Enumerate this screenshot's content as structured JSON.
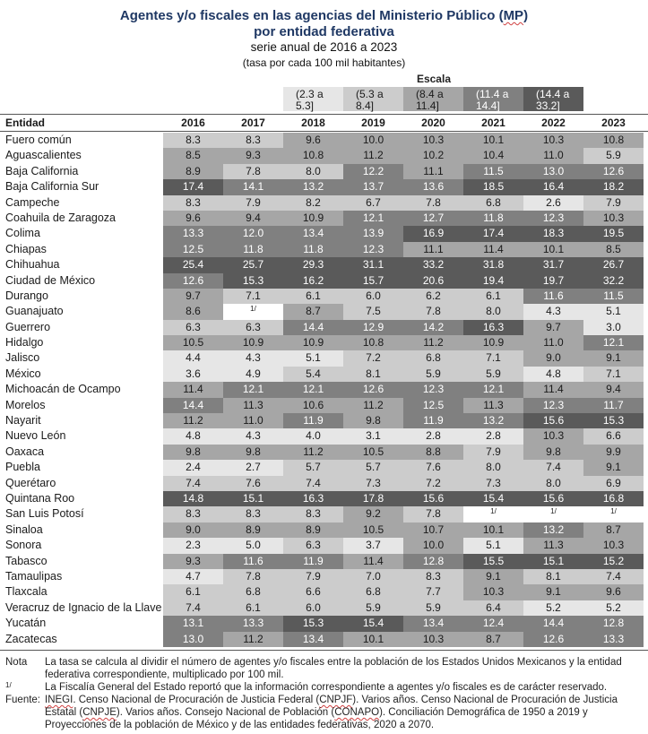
{
  "title_line1": "Agentes y/o fiscales en las agencias del Ministerio Público (MP)",
  "title_line2": "por entidad federativa",
  "subtitle": "serie anual de 2016 a 2023",
  "units": "(tasa por cada 100 mil habitantes)",
  "legend": {
    "title": "Escala",
    "ranges": [
      {
        "line1": "(2.3 a",
        "line2": "5.3]",
        "color": "#e6e6e6"
      },
      {
        "line1": "(5.3 a",
        "line2": "8.4]",
        "color": "#cccccc"
      },
      {
        "line1": "(8.4 a",
        "line2": "11.4]",
        "color": "#a6a6a6"
      },
      {
        "line1": "(11.4 a",
        "line2": "14.4]",
        "color": "#808080"
      },
      {
        "line1": "(14.4 a",
        "line2": "33.2]",
        "color": "#5a5a5a"
      }
    ],
    "thresholds": [
      5.3,
      8.4,
      11.4,
      14.4
    ]
  },
  "column_header": "Entidad",
  "chart_data": {
    "type": "table",
    "title": "Agentes y/o fiscales en las agencias del Ministerio Público (MP) por entidad federativa",
    "years": [
      "2016",
      "2017",
      "2018",
      "2019",
      "2020",
      "2021",
      "2022",
      "2023"
    ],
    "rows": [
      {
        "entity": "Fuero común",
        "values": [
          "8.3",
          "8.3",
          "9.6",
          "10.0",
          "10.3",
          "10.1",
          "10.3",
          "10.8"
        ]
      },
      {
        "entity": "Aguascalientes",
        "values": [
          "8.5",
          "9.3",
          "10.8",
          "11.2",
          "10.2",
          "10.4",
          "11.0",
          "5.9"
        ]
      },
      {
        "entity": "Baja California",
        "values": [
          "8.9",
          "7.8",
          "8.0",
          "12.2",
          "11.1",
          "11.5",
          "13.0",
          "12.6"
        ]
      },
      {
        "entity": "Baja California Sur",
        "values": [
          "17.4",
          "14.1",
          "13.2",
          "13.7",
          "13.6",
          "18.5",
          "16.4",
          "18.2"
        ]
      },
      {
        "entity": "Campeche",
        "values": [
          "8.3",
          "7.9",
          "8.2",
          "6.7",
          "7.8",
          "6.8",
          "2.6",
          "7.9"
        ]
      },
      {
        "entity": "Coahuila de Zaragoza",
        "values": [
          "9.6",
          "9.4",
          "10.9",
          "12.1",
          "12.7",
          "11.8",
          "12.3",
          "10.3"
        ]
      },
      {
        "entity": "Colima",
        "values": [
          "13.3",
          "12.0",
          "13.4",
          "13.9",
          "16.9",
          "17.4",
          "18.3",
          "19.5"
        ]
      },
      {
        "entity": "Chiapas",
        "values": [
          "12.5",
          "11.8",
          "11.8",
          "12.3",
          "11.1",
          "11.4",
          "10.1",
          "8.5"
        ]
      },
      {
        "entity": "Chihuahua",
        "values": [
          "25.4",
          "25.7",
          "29.3",
          "31.1",
          "33.2",
          "31.8",
          "31.7",
          "26.7"
        ]
      },
      {
        "entity": "Ciudad de México",
        "values": [
          "12.6",
          "15.3",
          "16.2",
          "15.7",
          "20.6",
          "19.4",
          "19.7",
          "32.2"
        ]
      },
      {
        "entity": "Durango",
        "values": [
          "9.7",
          "7.1",
          "6.1",
          "6.0",
          "6.2",
          "6.1",
          "11.6",
          "11.5"
        ]
      },
      {
        "entity": "Guanajuato",
        "values": [
          "8.6",
          "1/",
          "8.7",
          "7.5",
          "7.8",
          "8.0",
          "4.3",
          "5.1"
        ]
      },
      {
        "entity": "Guerrero",
        "values": [
          "6.3",
          "6.3",
          "14.4",
          "12.9",
          "14.2",
          "16.3",
          "9.7",
          "3.0"
        ]
      },
      {
        "entity": "Hidalgo",
        "values": [
          "10.5",
          "10.9",
          "10.9",
          "10.8",
          "11.2",
          "10.9",
          "11.0",
          "12.1"
        ]
      },
      {
        "entity": "Jalisco",
        "values": [
          "4.4",
          "4.3",
          "5.1",
          "7.2",
          "6.8",
          "7.1",
          "9.0",
          "9.1"
        ]
      },
      {
        "entity": "México",
        "values": [
          "3.6",
          "4.9",
          "5.4",
          "8.1",
          "5.9",
          "5.9",
          "4.8",
          "7.1"
        ]
      },
      {
        "entity": "Michoacán de Ocampo",
        "values": [
          "11.4",
          "12.1",
          "12.1",
          "12.6",
          "12.3",
          "12.1",
          "11.4",
          "9.4"
        ]
      },
      {
        "entity": "Morelos",
        "values": [
          "14.4",
          "11.3",
          "10.6",
          "11.2",
          "12.5",
          "11.3",
          "12.3",
          "11.7"
        ]
      },
      {
        "entity": "Nayarit",
        "values": [
          "11.2",
          "11.0",
          "11.9",
          "9.8",
          "11.9",
          "13.2",
          "15.6",
          "15.3"
        ]
      },
      {
        "entity": "Nuevo León",
        "values": [
          "4.8",
          "4.3",
          "4.0",
          "3.1",
          "2.8",
          "2.8",
          "10.3",
          "6.6"
        ]
      },
      {
        "entity": "Oaxaca",
        "values": [
          "9.8",
          "9.8",
          "11.2",
          "10.5",
          "8.8",
          "7.9",
          "9.8",
          "9.9"
        ]
      },
      {
        "entity": "Puebla",
        "values": [
          "2.4",
          "2.7",
          "5.7",
          "5.7",
          "7.6",
          "8.0",
          "7.4",
          "9.1"
        ]
      },
      {
        "entity": "Querétaro",
        "values": [
          "7.4",
          "7.6",
          "7.4",
          "7.3",
          "7.2",
          "7.3",
          "8.0",
          "6.9"
        ]
      },
      {
        "entity": "Quintana Roo",
        "values": [
          "14.8",
          "15.1",
          "16.3",
          "17.8",
          "15.6",
          "15.4",
          "15.6",
          "16.8"
        ]
      },
      {
        "entity": "San Luis Potosí",
        "values": [
          "8.3",
          "8.3",
          "8.3",
          "9.2",
          "7.8",
          "1/",
          "1/",
          "1/"
        ]
      },
      {
        "entity": "Sinaloa",
        "values": [
          "9.0",
          "8.9",
          "8.9",
          "10.5",
          "10.7",
          "10.1",
          "13.2",
          "8.7"
        ]
      },
      {
        "entity": "Sonora",
        "values": [
          "2.3",
          "5.0",
          "6.3",
          "3.7",
          "10.0",
          "5.1",
          "11.3",
          "10.3"
        ]
      },
      {
        "entity": "Tabasco",
        "values": [
          "9.3",
          "11.6",
          "11.9",
          "11.4",
          "12.8",
          "15.5",
          "15.1",
          "15.2"
        ]
      },
      {
        "entity": "Tamaulipas",
        "values": [
          "4.7",
          "7.8",
          "7.9",
          "7.0",
          "8.3",
          "9.1",
          "8.1",
          "7.4"
        ]
      },
      {
        "entity": "Tlaxcala",
        "values": [
          "6.1",
          "6.8",
          "6.6",
          "6.8",
          "7.7",
          "10.3",
          "9.1",
          "9.6"
        ]
      },
      {
        "entity": "Veracruz de Ignacio de la Llave",
        "values": [
          "7.4",
          "6.1",
          "6.0",
          "5.9",
          "5.9",
          "6.4",
          "5.2",
          "5.2"
        ]
      },
      {
        "entity": "Yucatán",
        "values": [
          "13.1",
          "13.3",
          "15.3",
          "15.4",
          "13.4",
          "12.4",
          "14.4",
          "12.8"
        ]
      },
      {
        "entity": "Zacatecas",
        "values": [
          "13.0",
          "11.2",
          "13.4",
          "10.1",
          "10.3",
          "8.7",
          "12.6",
          "13.3"
        ]
      }
    ]
  },
  "notes": {
    "nota_label": "Nota",
    "nota_text": "La tasa se calcula al dividir el número de agentes y/o fiscales entre la población de los Estados Unidos Mexicanos y la entidad federativa correspondiente, multiplicado por 100 mil.",
    "footnote_label": "1/",
    "footnote_text": "La Fiscalía General del Estado reportó que la información correspondiente a agentes y/o fiscales es de carácter reservado.",
    "fuente_label": "Fuente:",
    "fuente_text": "INEGI. Censo Nacional de Procuración de Justicia Federal (CNPJF). Varios años. Censo Nacional de Procuración de Justicia Estatal (CNPJE). Varios años. Consejo Nacional de Población (CONAPO). Conciliación Demográfica de 1950 a 2019 y Proyecciones de la población de México y de las entidades federativas, 2020 a 2070."
  }
}
